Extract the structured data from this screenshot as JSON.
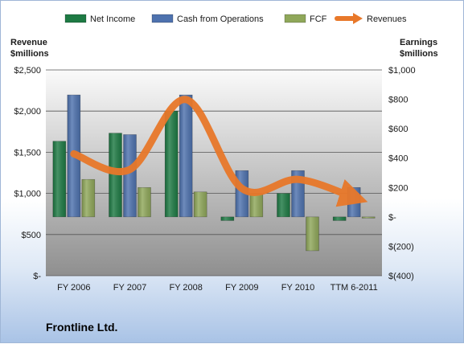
{
  "chart_data": {
    "type": "bar",
    "categories": [
      "FY 2006",
      "FY 2007",
      "FY 2008",
      "FY 2009",
      "FY 2010",
      "TTM 6-2011"
    ],
    "series": [
      {
        "name": "Net Income",
        "axis": "right",
        "type": "bar",
        "color": "#1e7a44",
        "values": [
          515,
          570,
          720,
          -25,
          160,
          -25
        ]
      },
      {
        "name": "Cash from Operations",
        "axis": "right",
        "type": "bar",
        "color": "#4e72ae",
        "values": [
          830,
          560,
          830,
          315,
          315,
          200
        ]
      },
      {
        "name": "FCF",
        "axis": "right",
        "type": "bar",
        "color": "#8fa75a",
        "values": [
          255,
          200,
          170,
          155,
          -230,
          0
        ]
      },
      {
        "name": "Revenues",
        "axis": "left",
        "type": "line",
        "color": "#e8782a",
        "values": [
          1480,
          1290,
          2140,
          1060,
          1170,
          950
        ]
      }
    ],
    "left_axis": {
      "title_line1": "Revenue",
      "title_line2": "$millions",
      "min": 0,
      "max": 2500,
      "step": 500,
      "tick_labels": [
        "$-",
        "$500",
        "$1,000",
        "$1,500",
        "$2,000",
        "$2,500"
      ]
    },
    "right_axis": {
      "title_line1": "Earnings",
      "title_line2": "$millions",
      "min": -400,
      "max": 1000,
      "step": 200,
      "tick_labels": [
        "$(400)",
        "$(200)",
        "$-",
        "$200",
        "$400",
        "$600",
        "$800",
        "$1,000"
      ]
    },
    "grid": true,
    "legend_position": "top"
  },
  "caption": {
    "company": "Frontline Ltd."
  }
}
